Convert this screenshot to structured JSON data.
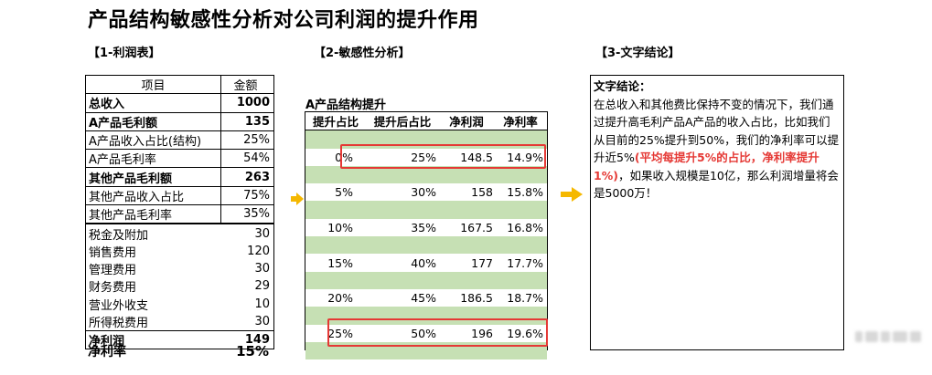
{
  "title": "产品结构敏感性分析对公司利润的提升作用",
  "sections": {
    "s1": "【1-利润表】",
    "s2": "【2-敏感性分析】",
    "s3": "【3-文字结论】"
  },
  "income": {
    "header": {
      "item": "项目",
      "amount": "金额"
    },
    "rows": [
      {
        "label": "总收入",
        "value": "1000",
        "bold": true
      },
      {
        "label": "A产品毛利额",
        "value": "135",
        "bold": true
      },
      {
        "label": "A产品收入占比(结构)",
        "value": "25%",
        "bold": false
      },
      {
        "label": "A产品毛利率",
        "value": "54%",
        "bold": false
      },
      {
        "label": "其他产品毛利额",
        "value": "263",
        "bold": true
      },
      {
        "label": "其他产品收入占比",
        "value": "75%",
        "bold": false
      },
      {
        "label": "其他产品毛利率",
        "value": "35%",
        "bold": false
      },
      {
        "label": "税金及附加",
        "value": "30",
        "bold": false
      },
      {
        "label": "销售费用",
        "value": "120",
        "bold": false
      },
      {
        "label": "管理费用",
        "value": "30",
        "bold": false
      },
      {
        "label": "财务费用",
        "value": "29",
        "bold": false
      },
      {
        "label": "营业外收支",
        "value": "10",
        "bold": false
      },
      {
        "label": "所得税费用",
        "value": "30",
        "bold": false
      },
      {
        "label": "净利润",
        "value": "149",
        "bold": true
      }
    ],
    "net_margin_label": "净利率",
    "net_margin_value": "15%"
  },
  "sensitivity": {
    "subtitle": "A产品结构提升",
    "headers": [
      "提升占比",
      "提升后占比",
      "净利润",
      "净利率"
    ],
    "rows": [
      [
        "0%",
        "25%",
        "148.5",
        "14.9%"
      ],
      [
        "5%",
        "30%",
        "158",
        "15.8%"
      ],
      [
        "10%",
        "35%",
        "167.5",
        "16.8%"
      ],
      [
        "15%",
        "40%",
        "177",
        "17.7%"
      ],
      [
        "20%",
        "45%",
        "186.5",
        "18.7%"
      ],
      [
        "25%",
        "50%",
        "196",
        "19.6%"
      ]
    ]
  },
  "conclusion": {
    "head": "文字结论：",
    "text1": "在总收入和其他费比保持不变的情况下，我们通过提升高毛利产品A产品的收入占比，比如我们从目前的25%提升到50%，我们的净利率可以提升近5%",
    "highlight": "(平均每提升5%的占比，净利率提升1%)",
    "text2": "，如果收入规模是10亿，那么利润增量将会是5000万！"
  },
  "colors": {
    "accent_green": "#c6e0b4",
    "highlight_red": "#e53935",
    "arrow": "#f5b800"
  }
}
